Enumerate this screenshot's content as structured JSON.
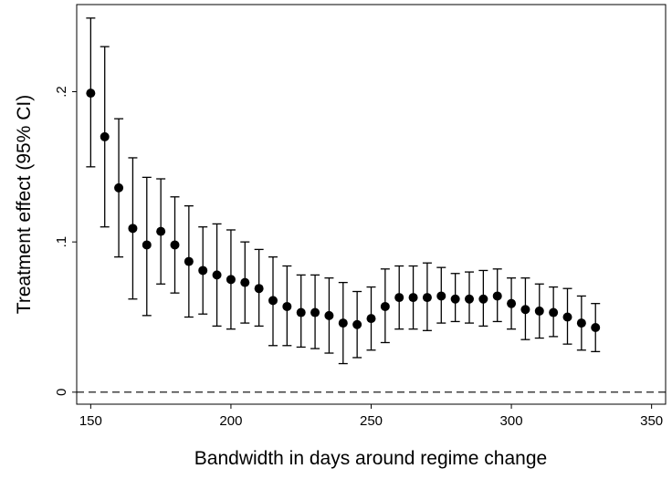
{
  "chart_data": {
    "type": "scatter",
    "title": "",
    "xlabel": "Bandwidth in days around regime change",
    "ylabel": "Treatment effect (95% CI)",
    "xlim": [
      145,
      355
    ],
    "ylim": [
      -0.008,
      0.258
    ],
    "x_ticks": [
      150,
      200,
      250,
      300,
      350
    ],
    "x_tick_labels": [
      "150",
      "200",
      "250",
      "300",
      "350"
    ],
    "y_ticks": [
      0,
      0.1,
      0.2
    ],
    "y_tick_labels": [
      "0",
      ".1",
      ".2"
    ],
    "reference_line": {
      "y": 0,
      "style": "dashed"
    },
    "grid": false,
    "legend": "none",
    "marker_color": "#000000",
    "series": [
      {
        "x": [
          150,
          155,
          160,
          165,
          170,
          175,
          180,
          185,
          190,
          195,
          200,
          205,
          210,
          215,
          220,
          225,
          230,
          235,
          240,
          245,
          250,
          255,
          260,
          265,
          270,
          275,
          280,
          285,
          290,
          295,
          300,
          305,
          310,
          315,
          320,
          325,
          330
        ],
        "y": [
          0.199,
          0.17,
          0.136,
          0.109,
          0.098,
          0.107,
          0.098,
          0.087,
          0.081,
          0.078,
          0.075,
          0.073,
          0.069,
          0.061,
          0.057,
          0.053,
          0.053,
          0.051,
          0.046,
          0.045,
          0.049,
          0.057,
          0.063,
          0.063,
          0.063,
          0.064,
          0.062,
          0.062,
          0.062,
          0.064,
          0.059,
          0.055,
          0.054,
          0.053,
          0.05,
          0.046,
          0.043
        ],
        "lower": [
          0.15,
          0.11,
          0.09,
          0.062,
          0.051,
          0.072,
          0.066,
          0.05,
          0.052,
          0.044,
          0.042,
          0.046,
          0.044,
          0.031,
          0.031,
          0.03,
          0.029,
          0.026,
          0.019,
          0.023,
          0.028,
          0.033,
          0.042,
          0.042,
          0.041,
          0.046,
          0.047,
          0.046,
          0.044,
          0.047,
          0.042,
          0.035,
          0.036,
          0.037,
          0.032,
          0.028,
          0.027
        ],
        "upper": [
          0.249,
          0.23,
          0.182,
          0.156,
          0.143,
          0.142,
          0.13,
          0.124,
          0.11,
          0.112,
          0.108,
          0.1,
          0.095,
          0.09,
          0.084,
          0.078,
          0.078,
          0.076,
          0.073,
          0.067,
          0.07,
          0.082,
          0.084,
          0.084,
          0.086,
          0.083,
          0.079,
          0.08,
          0.081,
          0.082,
          0.076,
          0.076,
          0.072,
          0.07,
          0.069,
          0.064,
          0.059
        ]
      }
    ]
  }
}
